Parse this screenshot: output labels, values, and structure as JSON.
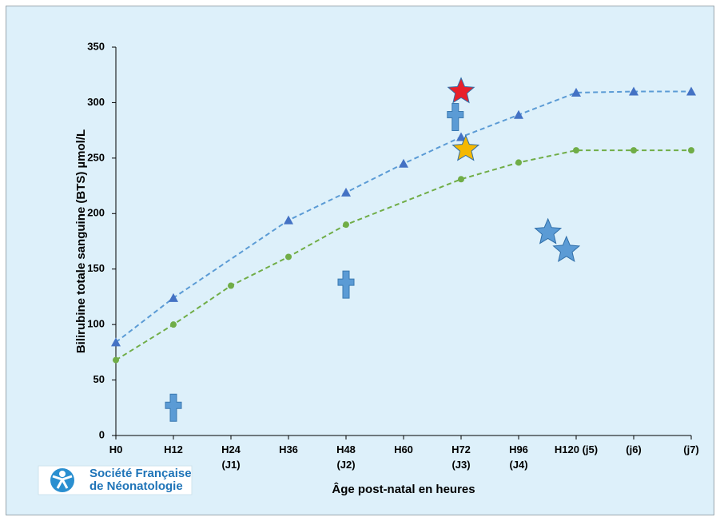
{
  "chart_data": {
    "type": "line",
    "y_label": "Bilirubine totale sanguine (BTS) µmol/L",
    "x_label": "Âge post-natal en heures",
    "logo": [
      "Société Française",
      "de Néonatologie"
    ],
    "xlim": [
      0,
      10
    ],
    "xticks": [
      {
        "value": 0,
        "label": "H0"
      },
      {
        "value": 1,
        "label": "H12"
      },
      {
        "value": 2,
        "label": "H24\n(J1)"
      },
      {
        "value": 3,
        "label": "H36"
      },
      {
        "value": 4,
        "label": "H48\n(J2)"
      },
      {
        "value": 5,
        "label": "H60"
      },
      {
        "value": 6,
        "label": "H72\n(J3)"
      },
      {
        "value": 7,
        "label": "H96\n(J4)"
      },
      {
        "value": 8,
        "label": "H120 (j5)"
      },
      {
        "value": 9,
        "label": "(j6)"
      },
      {
        "value": 10,
        "label": "(j7)"
      }
    ],
    "ylim": [
      0,
      350
    ],
    "yticks": [
      0,
      50,
      100,
      150,
      200,
      250,
      300,
      350
    ],
    "grid": false,
    "series": [
      {
        "color": "#4472c4",
        "line_color": "#5b9bd5",
        "marker": "triangle",
        "line": "dashed",
        "x": [
          0,
          1,
          3,
          4,
          5,
          6,
          7,
          8,
          9,
          10
        ],
        "values": [
          84,
          124,
          194,
          219,
          245,
          269,
          289,
          309,
          310,
          310
        ]
      },
      {
        "color": "#70ad47",
        "line_color": "#70ad47",
        "marker": "circle",
        "line": "dashed",
        "x": [
          0,
          1,
          2,
          3,
          4,
          6,
          7,
          8,
          9,
          10
        ],
        "values": [
          68,
          100,
          135,
          161,
          190,
          231,
          246,
          257,
          257,
          257
        ]
      },
      {
        "color": "#5b9bd5",
        "marker": "cross",
        "line": "none",
        "x": [
          1,
          4,
          5.9
        ],
        "values": [
          25,
          136,
          287
        ]
      },
      {
        "color": "#5b9bd5",
        "colors": [
          "#e8202a",
          "#f5b800",
          "#5b9bd5",
          "#5b9bd5"
        ],
        "marker": "star",
        "line": "none",
        "x": [
          6.0,
          6.08,
          7.51,
          7.83
        ],
        "values": [
          310,
          258,
          183,
          167
        ]
      }
    ]
  }
}
